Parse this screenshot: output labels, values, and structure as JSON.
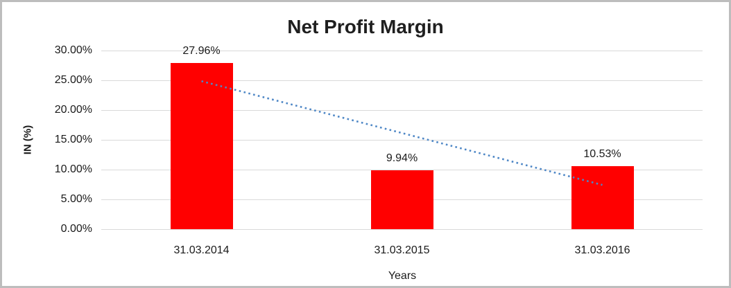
{
  "window": {
    "background_color": "#ffffff",
    "border_color": "#bdbdbd"
  },
  "chart_data": {
    "type": "bar",
    "title": "Net Profit Margin",
    "xlabel": "Years",
    "ylabel": "IN (%)",
    "categories": [
      "31.03.2014",
      "31.03.2015",
      "31.03.2016"
    ],
    "series": [
      {
        "name": "Net Profit Margin",
        "values": [
          27.96,
          9.94,
          10.53
        ],
        "data_labels": [
          "27.96%",
          "9.94%",
          "10.53%"
        ]
      }
    ],
    "ylim": [
      0,
      30
    ],
    "ytick_step": 5,
    "ytick_labels": [
      "0.00%",
      "5.00%",
      "10.00%",
      "15.00%",
      "20.00%",
      "25.00%",
      "30.00%"
    ],
    "grid": true,
    "legend": "none",
    "bar_color": "#ff0000",
    "gridline_color": "#d9d9d9",
    "text_color": "#1a1a1a",
    "trendline": {
      "type": "linear",
      "style": "dotted",
      "color": "#4e87c6",
      "start_value": 24.86,
      "end_value": 7.43
    }
  }
}
